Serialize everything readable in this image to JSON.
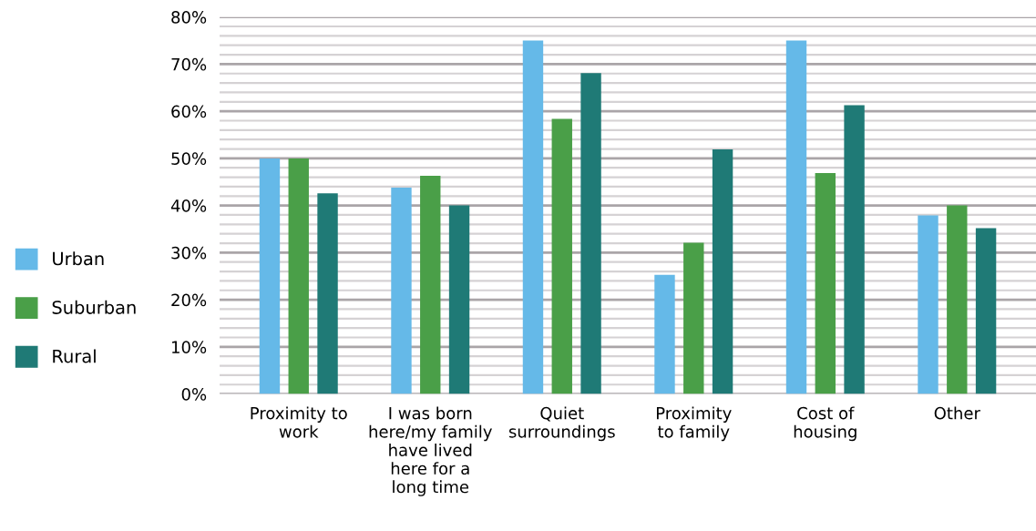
{
  "chart_data": {
    "type": "bar",
    "categories": [
      "Proximity to\nwork",
      "I was born\nhere/my family\nhave lived\nhere for a\nlong time",
      "Quiet\nsurroundings",
      "Proximity\nto family",
      "Cost of\nhousing",
      "Other"
    ],
    "series": [
      {
        "name": "Urban",
        "color": "#65b9e8",
        "values": [
          50,
          43.8,
          75,
          25.3,
          75,
          37.9
        ]
      },
      {
        "name": "Suburban",
        "color": "#4a9f48",
        "values": [
          50,
          46.3,
          58.4,
          32.1,
          46.9,
          40
        ]
      },
      {
        "name": "Rural",
        "color": "#1f7a76",
        "values": [
          42.6,
          40,
          68.1,
          51.9,
          61.3,
          35.2
        ]
      }
    ],
    "ylim": [
      0,
      80
    ],
    "yticks": [
      {
        "value": 0,
        "label": "0%"
      },
      {
        "value": 2,
        "label": null
      },
      {
        "value": 4,
        "label": null
      },
      {
        "value": 6,
        "label": null
      },
      {
        "value": 8,
        "label": null
      },
      {
        "value": 10,
        "label": "10%"
      },
      {
        "value": 12,
        "label": null
      },
      {
        "value": 14,
        "label": null
      },
      {
        "value": 16,
        "label": null
      },
      {
        "value": 18,
        "label": null
      },
      {
        "value": 20,
        "label": "20%"
      },
      {
        "value": 22,
        "label": null
      },
      {
        "value": 24,
        "label": null
      },
      {
        "value": 26,
        "label": null
      },
      {
        "value": 28,
        "label": null
      },
      {
        "value": 30,
        "label": "30%"
      },
      {
        "value": 32,
        "label": null
      },
      {
        "value": 34,
        "label": null
      },
      {
        "value": 36,
        "label": null
      },
      {
        "value": 38,
        "label": null
      },
      {
        "value": 40,
        "label": "40%"
      },
      {
        "value": 42,
        "label": null
      },
      {
        "value": 44,
        "label": null
      },
      {
        "value": 46,
        "label": null
      },
      {
        "value": 48,
        "label": null
      },
      {
        "value": 50,
        "label": "50%"
      },
      {
        "value": 52,
        "label": null
      },
      {
        "value": 54,
        "label": null
      },
      {
        "value": 56,
        "label": null
      },
      {
        "value": 58,
        "label": null
      },
      {
        "value": 60,
        "label": "60%"
      },
      {
        "value": 62,
        "label": null
      },
      {
        "value": 64,
        "label": null
      },
      {
        "value": 66,
        "label": null
      },
      {
        "value": 68,
        "label": null
      },
      {
        "value": 70,
        "label": "70%"
      },
      {
        "value": 72,
        "label": null
      },
      {
        "value": 74,
        "label": null
      },
      {
        "value": 76,
        "label": null
      },
      {
        "value": 78,
        "label": null
      },
      {
        "value": 80,
        "label": "80%"
      }
    ],
    "grid": "y",
    "legend": "left"
  }
}
